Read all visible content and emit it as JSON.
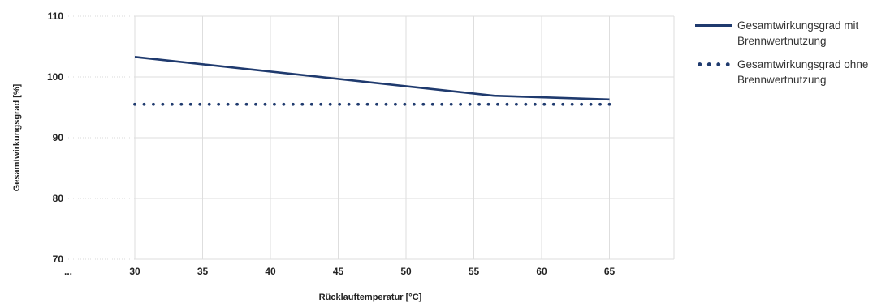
{
  "chart_data": {
    "type": "line",
    "xlabel": "Rücklauftemperatur [°C]",
    "ylabel": "Gesamtwirkungsgrad [%]",
    "x_ticks": [
      "...",
      "30",
      "35",
      "40",
      "45",
      "50",
      "55",
      "60",
      "65"
    ],
    "x_tick_values": [
      22,
      30,
      35,
      40,
      45,
      50,
      55,
      60,
      65
    ],
    "xlim": [
      22,
      70
    ],
    "y_ticks": [
      70,
      80,
      90,
      100,
      110
    ],
    "ylim": [
      70,
      110
    ],
    "grid": true,
    "legend_position": "right",
    "series": [
      {
        "name": "Gesamtwirkungsgrad mit Brennwertnutzung",
        "style": "solid",
        "color": "#1f3a6e",
        "x": [
          30,
          56.5,
          65
        ],
        "y": [
          103.3,
          96.9,
          96.3
        ]
      },
      {
        "name": "Gesamtwirkungsgrad ohne Brennwertnutzung",
        "style": "dotted",
        "color": "#1f3a6e",
        "x": [
          30,
          65
        ],
        "y": [
          95.5,
          95.5
        ]
      }
    ]
  }
}
